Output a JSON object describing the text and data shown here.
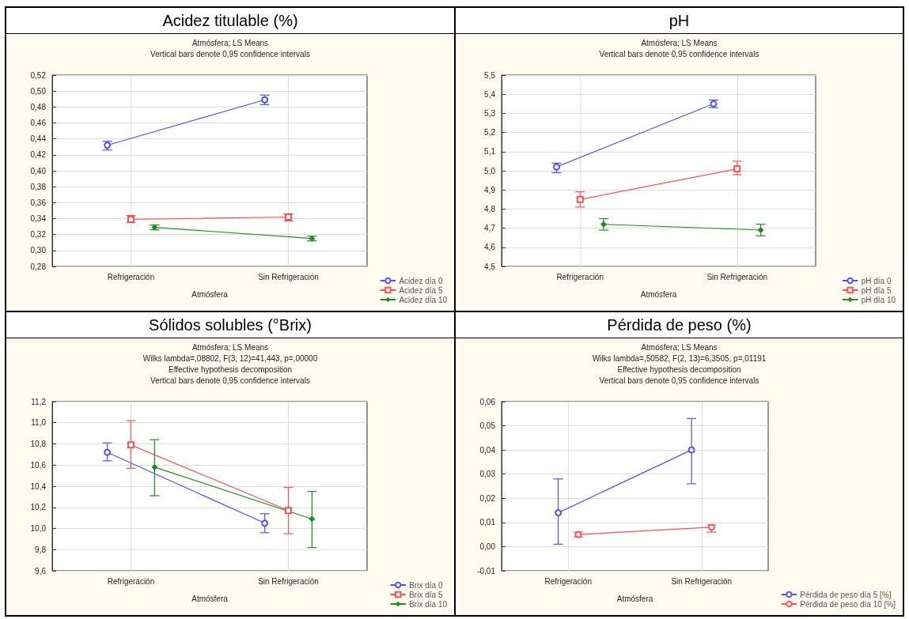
{
  "chart_data": [
    {
      "type": "line",
      "title": "Acidez titulable (%)",
      "subtitle": "Atmósfera; LS Means",
      "annotations": [
        "Vertical bars denote 0,95 confidence intervals"
      ],
      "xlabel": "Atmósfera",
      "categories": [
        "Refrigeración",
        "Sin Refrigeración"
      ],
      "series": [
        {
          "name": "Acidez día 0",
          "color": "#5050ff",
          "marker": "circle",
          "values": [
            0.432,
            0.489
          ],
          "errors": [
            [
              0.426,
              0.437
            ],
            [
              0.483,
              0.495
            ]
          ]
        },
        {
          "name": "Acidez día 5",
          "color": "#ff5050",
          "marker": "square",
          "values": [
            0.339,
            0.342
          ],
          "errors": [
            [
              0.335,
              0.344
            ],
            [
              0.337,
              0.346
            ]
          ]
        },
        {
          "name": "Acidez día 10",
          "color": "#1e8c1e",
          "marker": "diamond",
          "values": [
            0.329,
            0.315
          ],
          "errors": [
            [
              0.326,
              0.332
            ],
            [
              0.312,
              0.318
            ]
          ]
        }
      ],
      "ylim": [
        0.28,
        0.52
      ],
      "yticks": [
        {
          "value": 0.28,
          "label": "0,28"
        },
        {
          "value": 0.3,
          "label": "0,30"
        },
        {
          "value": 0.32,
          "label": "0,32"
        },
        {
          "value": 0.34,
          "label": "0,34"
        },
        {
          "value": 0.36,
          "label": "0,36"
        },
        {
          "value": 0.38,
          "label": "0,38"
        },
        {
          "value": 0.4,
          "label": "0,40"
        },
        {
          "value": 0.42,
          "label": "0,42"
        },
        {
          "value": 0.44,
          "label": "0,44"
        },
        {
          "value": 0.46,
          "label": "0,46"
        },
        {
          "value": 0.48,
          "label": "0,48"
        },
        {
          "value": 0.5,
          "label": "0,50"
        },
        {
          "value": 0.52,
          "label": "0,52"
        }
      ],
      "grid": true,
      "legend": "bottom right",
      "line_style": "solid"
    },
    {
      "type": "line",
      "title": "pH",
      "subtitle": "Atmósfera; LS Means",
      "annotations": [
        "Vertical bars denote 0,95 confidence intervals"
      ],
      "xlabel": "Atmósfera",
      "categories": [
        "Refrigeración",
        "Sin Refrigeración"
      ],
      "series": [
        {
          "name": "pH día 0",
          "color": "#5050ff",
          "marker": "circle",
          "values": [
            5.02,
            5.35
          ],
          "errors": [
            [
              4.99,
              5.04
            ],
            [
              5.33,
              5.37
            ]
          ]
        },
        {
          "name": "pH día 5",
          "color": "#ff5050",
          "marker": "square",
          "values": [
            4.85,
            5.01
          ],
          "errors": [
            [
              4.81,
              4.89
            ],
            [
              4.98,
              5.05
            ]
          ]
        },
        {
          "name": "pH día 10",
          "color": "#1e8c1e",
          "marker": "diamond",
          "values": [
            4.72,
            4.69
          ],
          "errors": [
            [
              4.69,
              4.75
            ],
            [
              4.66,
              4.72
            ]
          ]
        }
      ],
      "ylim": [
        4.5,
        5.5
      ],
      "yticks": [
        {
          "value": 4.5,
          "label": "4,5"
        },
        {
          "value": 4.6,
          "label": "4,6"
        },
        {
          "value": 4.7,
          "label": "4,7"
        },
        {
          "value": 4.8,
          "label": "4,8"
        },
        {
          "value": 4.9,
          "label": "4,9"
        },
        {
          "value": 5.0,
          "label": "5,0"
        },
        {
          "value": 5.1,
          "label": "5,1"
        },
        {
          "value": 5.2,
          "label": "5,2"
        },
        {
          "value": 5.3,
          "label": "5,3"
        },
        {
          "value": 5.4,
          "label": "5,4"
        },
        {
          "value": 5.5,
          "label": "5,5"
        }
      ],
      "grid": true,
      "legend": "bottom right",
      "line_style": "solid"
    },
    {
      "type": "line",
      "title": "Sólidos solubles (°Brix)",
      "subtitle": "Atmósfera; LS Means",
      "annotations": [
        "Wilks lambda=,08802, F(3, 12)=41,443, p=,00000",
        "Effective hypothesis decomposition",
        "Vertical bars denote 0,95 confidence intervals"
      ],
      "xlabel": "Atmósfera",
      "categories": [
        "Refrigeración",
        "Sin Refrigeración"
      ],
      "series": [
        {
          "name": "Brix día 0",
          "color": "#5050ff",
          "marker": "circle",
          "values": [
            10.72,
            10.05
          ],
          "errors": [
            [
              10.64,
              10.81
            ],
            [
              9.96,
              10.14
            ]
          ]
        },
        {
          "name": "Brix día 5",
          "color": "#ff5050",
          "marker": "square",
          "values": [
            10.79,
            10.17
          ],
          "errors": [
            [
              10.57,
              11.02
            ],
            [
              9.95,
              10.39
            ]
          ]
        },
        {
          "name": "Brix día 10",
          "color": "#1e8c1e",
          "marker": "diamond",
          "values": [
            10.58,
            10.09
          ],
          "errors": [
            [
              10.31,
              10.84
            ],
            [
              9.82,
              10.35
            ]
          ]
        }
      ],
      "ylim": [
        9.6,
        11.2
      ],
      "yticks": [
        {
          "value": 9.6,
          "label": "9,6"
        },
        {
          "value": 9.8,
          "label": "9,8"
        },
        {
          "value": 10.0,
          "label": "10,0"
        },
        {
          "value": 10.2,
          "label": "10,2"
        },
        {
          "value": 10.4,
          "label": "10,4"
        },
        {
          "value": 10.6,
          "label": "10,6"
        },
        {
          "value": 10.8,
          "label": "10,8"
        },
        {
          "value": 11.0,
          "label": "11,0"
        },
        {
          "value": 11.2,
          "label": "11,2"
        }
      ],
      "grid": true,
      "legend": "bottom right",
      "line_style": "solid"
    },
    {
      "type": "line",
      "title": "Pérdida de peso (%)",
      "subtitle": "Atmósfera; LS Means",
      "annotations": [
        "Wilks lambda=,50582, F(2, 13)=6,3505, p=,01191",
        "Effective hypothesis decomposition",
        "Vertical bars denote 0,95 confidence intervals"
      ],
      "xlabel": "Atmósfera",
      "categories": [
        "Refrigeración",
        "Sin Refrigeración"
      ],
      "series": [
        {
          "name": "Pérdida de peso día 5 [%]",
          "color": "#5050ff",
          "marker": "circle",
          "values": [
            0.014,
            0.04
          ],
          "errors": [
            [
              0.001,
              0.028
            ],
            [
              0.026,
              0.053
            ]
          ]
        },
        {
          "name": "Pérdida de peso día 10 [%]",
          "color": "#ff5050",
          "marker": "circle",
          "values": [
            0.005,
            0.008
          ],
          "errors": [
            [
              0.004,
              0.006
            ],
            [
              0.006,
              0.009
            ]
          ]
        }
      ],
      "ylim": [
        -0.01,
        0.06
      ],
      "yticks": [
        {
          "value": -0.01,
          "label": "-0,01"
        },
        {
          "value": 0.0,
          "label": "0,00"
        },
        {
          "value": 0.01,
          "label": "0,01"
        },
        {
          "value": 0.02,
          "label": "0,02"
        },
        {
          "value": 0.03,
          "label": "0,03"
        },
        {
          "value": 0.04,
          "label": "0,04"
        },
        {
          "value": 0.05,
          "label": "0,05"
        },
        {
          "value": 0.06,
          "label": "0,06"
        }
      ],
      "grid": true,
      "legend": "bottom right",
      "line_style": "solid"
    }
  ]
}
